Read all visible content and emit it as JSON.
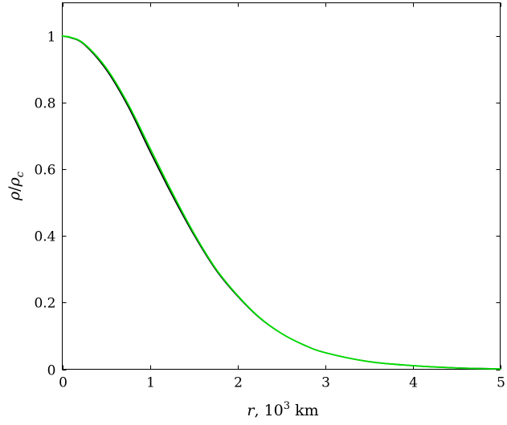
{
  "chart_data": {
    "type": "line",
    "title": "",
    "xlabel_parts": {
      "var": "r",
      "mid": ", 10",
      "sup": "3",
      "unit": " km"
    },
    "ylabel_parts": {
      "num": "ρ",
      "slash": "/",
      "den": "ρ",
      "sub": "c"
    },
    "xlim": [
      0,
      5
    ],
    "ylim": [
      0,
      1.1
    ],
    "xticks": [
      0,
      1,
      2,
      3,
      4,
      5
    ],
    "xtick_labels": [
      "0",
      "1",
      "2",
      "3",
      "4",
      "5"
    ],
    "yticks": [
      0,
      0.2,
      0.4,
      0.6,
      0.8,
      1
    ],
    "ytick_labels": [
      "0",
      "0.2",
      "0.4",
      "0.6",
      "0.8",
      "1"
    ],
    "grid": false,
    "legend": "none",
    "series": [
      {
        "color": "#000000",
        "x": [
          0,
          0.1,
          0.25,
          0.5,
          0.75,
          1.0,
          1.25,
          1.5,
          1.75,
          2.0,
          2.25,
          2.5,
          2.75,
          3.0,
          3.5,
          4.0,
          4.5,
          5.0
        ],
        "y": [
          1.0,
          0.995,
          0.975,
          0.9,
          0.79,
          0.655,
          0.525,
          0.405,
          0.3,
          0.22,
          0.155,
          0.108,
          0.074,
          0.05,
          0.023,
          0.011,
          0.004,
          0.001
        ]
      },
      {
        "color": "#00dd00",
        "x": [
          0,
          0.1,
          0.25,
          0.5,
          0.75,
          1.0,
          1.25,
          1.5,
          1.75,
          2.0,
          2.25,
          2.5,
          2.75,
          3.0,
          3.5,
          4.0,
          4.5,
          5.0
        ],
        "y": [
          1.0,
          0.996,
          0.977,
          0.905,
          0.797,
          0.665,
          0.533,
          0.41,
          0.303,
          0.222,
          0.156,
          0.108,
          0.074,
          0.05,
          0.023,
          0.011,
          0.004,
          0.001
        ]
      }
    ]
  }
}
